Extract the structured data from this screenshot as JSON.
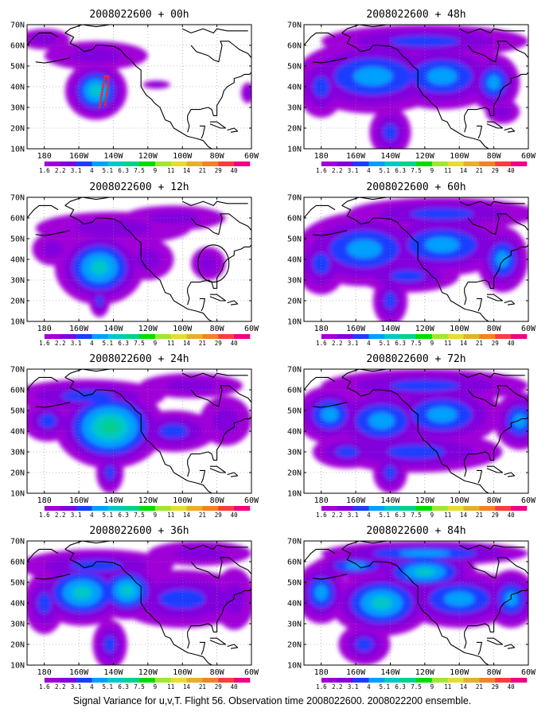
{
  "caption": "Signal Variance for u,v,T. Flight 56. Observation time 2008022600. 2008022200 ensemble.",
  "colorbar": {
    "labels": [
      "1.6",
      "2.2",
      "3.1",
      "4",
      "5.1",
      "6.3",
      "7.5",
      "9",
      "11",
      "14",
      "21",
      "29",
      "40"
    ],
    "colors": [
      "#a000d8",
      "#8200dc",
      "#1e3cff",
      "#00a0ff",
      "#00c8c8",
      "#00d28c",
      "#00dc00",
      "#a0e632",
      "#e6dc32",
      "#e6af2d",
      "#f08228",
      "#fa3c3c",
      "#f00082"
    ]
  },
  "map": {
    "lon_range": [
      -190,
      -60
    ],
    "lat_range": [
      10,
      70
    ],
    "x_ticks": [
      "180",
      "160W",
      "140W",
      "120W",
      "100W",
      "80W",
      "60W"
    ],
    "y_ticks": [
      "10N",
      "20N",
      "30N",
      "40N",
      "50N",
      "60N",
      "70N"
    ],
    "grid": "dotted"
  },
  "chart_data": [
    {
      "type": "heatmap",
      "title": "2008022600 + 00h",
      "lead_hours": 0,
      "max_level": 7,
      "blobs": [
        {
          "lon": -150,
          "lat": 38,
          "rx": 18,
          "ry": 14,
          "v": 5.8
        },
        {
          "lon": -150,
          "lat": 55,
          "rx": 30,
          "ry": 7,
          "v": 2.5
        },
        {
          "lon": -180,
          "lat": 63,
          "rx": 15,
          "ry": 5,
          "v": 2.2
        },
        {
          "lon": -115,
          "lat": 41,
          "rx": 8,
          "ry": 2,
          "v": 2.4
        },
        {
          "lon": -62,
          "lat": 37,
          "rx": 4,
          "ry": 5,
          "v": 2.4
        }
      ],
      "sonde_track": [
        [
          -148,
          30
        ],
        [
          -147,
          35
        ],
        [
          -146,
          40
        ],
        [
          -145,
          45
        ],
        [
          -143,
          45
        ],
        [
          -143,
          40
        ],
        [
          -144,
          35
        ],
        [
          -145,
          30
        ]
      ]
    },
    {
      "type": "heatmap",
      "title": "2008022600 + 12h",
      "lead_hours": 12,
      "max_level": 7,
      "blobs": [
        {
          "lon": -148,
          "lat": 36,
          "rx": 26,
          "ry": 18,
          "v": 6.2
        },
        {
          "lon": -140,
          "lat": 55,
          "rx": 45,
          "ry": 8,
          "v": 2.6
        },
        {
          "lon": -105,
          "lat": 60,
          "rx": 30,
          "ry": 6,
          "v": 2.3
        },
        {
          "lon": -148,
          "lat": 20,
          "rx": 6,
          "ry": 8,
          "v": 3.2
        },
        {
          "lon": -120,
          "lat": 40,
          "rx": 15,
          "ry": 10,
          "v": 2.4
        },
        {
          "lon": -85,
          "lat": 38,
          "rx": 10,
          "ry": 8,
          "v": 2.3
        },
        {
          "lon": -175,
          "lat": 45,
          "rx": 12,
          "ry": 8,
          "v": 2.4
        }
      ],
      "circle": {
        "lon": -82,
        "lat": 38,
        "r_lon": 9,
        "r_lat": 9
      }
    },
    {
      "type": "heatmap",
      "title": "2008022600 + 24h",
      "lead_hours": 24,
      "max_level": 7,
      "blobs": [
        {
          "lon": -142,
          "lat": 42,
          "rx": 32,
          "ry": 20,
          "v": 6.5
        },
        {
          "lon": -155,
          "lat": 57,
          "rx": 45,
          "ry": 8,
          "v": 3.2
        },
        {
          "lon": -178,
          "lat": 45,
          "rx": 15,
          "ry": 10,
          "v": 3.3
        },
        {
          "lon": -142,
          "lat": 20,
          "rx": 8,
          "ry": 10,
          "v": 3.2
        },
        {
          "lon": -105,
          "lat": 40,
          "rx": 25,
          "ry": 10,
          "v": 3.3
        },
        {
          "lon": -75,
          "lat": 45,
          "rx": 15,
          "ry": 12,
          "v": 2.8
        },
        {
          "lon": -95,
          "lat": 62,
          "rx": 30,
          "ry": 6,
          "v": 2.4
        }
      ]
    },
    {
      "type": "heatmap",
      "title": "2008022600 + 36h",
      "lead_hours": 36,
      "max_level": 7,
      "blobs": [
        {
          "lon": -158,
          "lat": 45,
          "rx": 28,
          "ry": 16,
          "v": 5.8
        },
        {
          "lon": -132,
          "lat": 46,
          "rx": 20,
          "ry": 14,
          "v": 5.8
        },
        {
          "lon": -150,
          "lat": 58,
          "rx": 45,
          "ry": 8,
          "v": 3.4
        },
        {
          "lon": -142,
          "lat": 20,
          "rx": 10,
          "ry": 12,
          "v": 3.3
        },
        {
          "lon": -100,
          "lat": 42,
          "rx": 40,
          "ry": 14,
          "v": 3.7
        },
        {
          "lon": -70,
          "lat": 42,
          "rx": 12,
          "ry": 15,
          "v": 3.0
        },
        {
          "lon": -180,
          "lat": 40,
          "rx": 12,
          "ry": 15,
          "v": 3.2
        },
        {
          "lon": -90,
          "lat": 64,
          "rx": 30,
          "ry": 6,
          "v": 2.6
        }
      ]
    },
    {
      "type": "heatmap",
      "title": "2008022600 + 48h",
      "lead_hours": 48,
      "max_level": 7,
      "blobs": [
        {
          "lon": -150,
          "lat": 45,
          "rx": 45,
          "ry": 18,
          "v": 4.5
        },
        {
          "lon": -110,
          "lat": 45,
          "rx": 35,
          "ry": 16,
          "v": 4.4
        },
        {
          "lon": -180,
          "lat": 40,
          "rx": 14,
          "ry": 15,
          "v": 3.8
        },
        {
          "lon": -140,
          "lat": 18,
          "rx": 12,
          "ry": 12,
          "v": 3.2
        },
        {
          "lon": -80,
          "lat": 42,
          "rx": 15,
          "ry": 14,
          "v": 4.0
        },
        {
          "lon": -120,
          "lat": 62,
          "rx": 60,
          "ry": 8,
          "v": 3.4
        },
        {
          "lon": -75,
          "lat": 28,
          "rx": 10,
          "ry": 6,
          "v": 3.0
        }
      ]
    },
    {
      "type": "heatmap",
      "title": "2008022600 + 60h",
      "lead_hours": 60,
      "max_level": 7,
      "blobs": [
        {
          "lon": -155,
          "lat": 45,
          "rx": 40,
          "ry": 18,
          "v": 4.4
        },
        {
          "lon": -110,
          "lat": 47,
          "rx": 40,
          "ry": 15,
          "v": 4.3
        },
        {
          "lon": -180,
          "lat": 38,
          "rx": 15,
          "ry": 15,
          "v": 3.8
        },
        {
          "lon": -140,
          "lat": 20,
          "rx": 10,
          "ry": 12,
          "v": 3.4
        },
        {
          "lon": -75,
          "lat": 40,
          "rx": 15,
          "ry": 16,
          "v": 4.1
        },
        {
          "lon": -110,
          "lat": 62,
          "rx": 55,
          "ry": 8,
          "v": 3.6
        },
        {
          "lon": -130,
          "lat": 32,
          "rx": 30,
          "ry": 8,
          "v": 3.2
        }
      ]
    },
    {
      "type": "heatmap",
      "title": "2008022600 + 72h",
      "lead_hours": 72,
      "max_level": 7,
      "blobs": [
        {
          "lon": -175,
          "lat": 48,
          "rx": 20,
          "ry": 14,
          "v": 4.6
        },
        {
          "lon": -145,
          "lat": 45,
          "rx": 30,
          "ry": 16,
          "v": 4.6
        },
        {
          "lon": -110,
          "lat": 48,
          "rx": 35,
          "ry": 15,
          "v": 4.3
        },
        {
          "lon": -65,
          "lat": 45,
          "rx": 15,
          "ry": 14,
          "v": 4.5
        },
        {
          "lon": -140,
          "lat": 20,
          "rx": 10,
          "ry": 10,
          "v": 3.2
        },
        {
          "lon": -120,
          "lat": 62,
          "rx": 60,
          "ry": 8,
          "v": 3.8
        },
        {
          "lon": -125,
          "lat": 30,
          "rx": 50,
          "ry": 10,
          "v": 3.3
        },
        {
          "lon": -165,
          "lat": 30,
          "rx": 20,
          "ry": 8,
          "v": 3.3
        }
      ]
    },
    {
      "type": "heatmap",
      "title": "2008022600 + 84h",
      "lead_hours": 84,
      "max_level": 8,
      "blobs": [
        {
          "lon": -145,
          "lat": 40,
          "rx": 30,
          "ry": 16,
          "v": 5.6
        },
        {
          "lon": -120,
          "lat": 55,
          "rx": 30,
          "ry": 10,
          "v": 5.2
        },
        {
          "lon": -180,
          "lat": 45,
          "rx": 15,
          "ry": 15,
          "v": 4.6
        },
        {
          "lon": -100,
          "lat": 42,
          "rx": 35,
          "ry": 14,
          "v": 4.4
        },
        {
          "lon": -70,
          "lat": 42,
          "rx": 15,
          "ry": 14,
          "v": 4.4
        },
        {
          "lon": -155,
          "lat": 20,
          "rx": 15,
          "ry": 10,
          "v": 3.3
        },
        {
          "lon": -120,
          "lat": 64,
          "rx": 60,
          "ry": 6,
          "v": 4.0
        },
        {
          "lon": -160,
          "lat": 58,
          "rx": 25,
          "ry": 6,
          "v": 4.2
        }
      ]
    }
  ]
}
